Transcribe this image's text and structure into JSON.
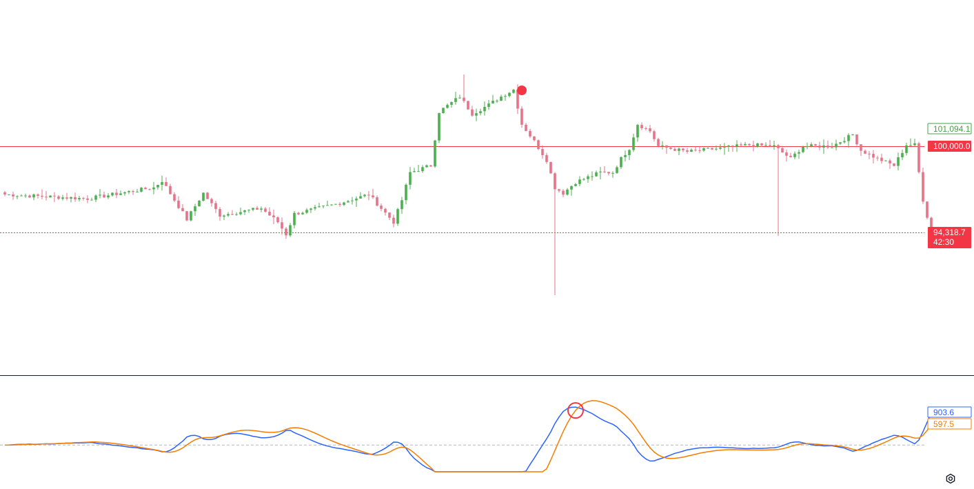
{
  "chart_data": [
    {
      "type": "candlestick",
      "pane": "price",
      "ohlc": [],
      "reference_price": 100000.0,
      "current_price": 94318.7,
      "price_labels": [
        {
          "role": "high-marker",
          "text": "101,094.1",
          "color": "#43a047"
        },
        {
          "role": "reference-line",
          "text": "100,000.0",
          "color": "#f23645"
        },
        {
          "role": "last-price",
          "text": "94,318.7",
          "countdown": "42:30",
          "color": "#f23645"
        }
      ],
      "signal_marker": {
        "color": "#f23645"
      },
      "up_color": "#4caf50",
      "down_color": "#e57389"
    },
    {
      "type": "line",
      "pane": "oscillator",
      "series": [
        {
          "color": "#2962ff",
          "values": [],
          "last_label": "903.6"
        },
        {
          "color": "#f57c00",
          "values": [],
          "last_label": "597.5"
        }
      ],
      "zero_line": 0,
      "crossover_marker": {
        "color": "#f23645"
      }
    }
  ],
  "icons": {
    "settings": "settings-gear-icon"
  }
}
